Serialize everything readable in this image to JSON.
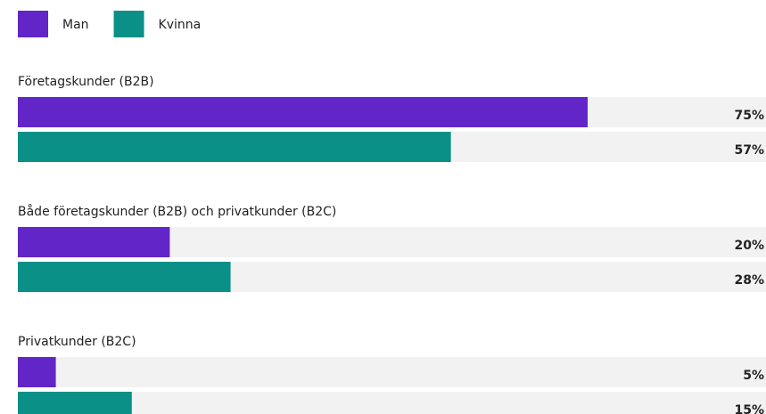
{
  "chart_data": {
    "type": "bar",
    "orientation": "horizontal",
    "categories": [
      "Företagskunder (B2B)",
      "Både företagskunder (B2B) och privatkunder (B2C)",
      "Privatkunder (B2C)"
    ],
    "series": [
      {
        "name": "Man",
        "color": "#6226c8",
        "values": [
          75,
          20,
          5
        ],
        "value_labels": [
          "75%",
          "20%",
          "5%"
        ]
      },
      {
        "name": "Kvinna",
        "color": "#0b9088",
        "values": [
          57,
          28,
          15
        ],
        "value_labels": [
          "57%",
          "28%",
          "15%"
        ]
      }
    ],
    "xlim": [
      0,
      100
    ]
  }
}
